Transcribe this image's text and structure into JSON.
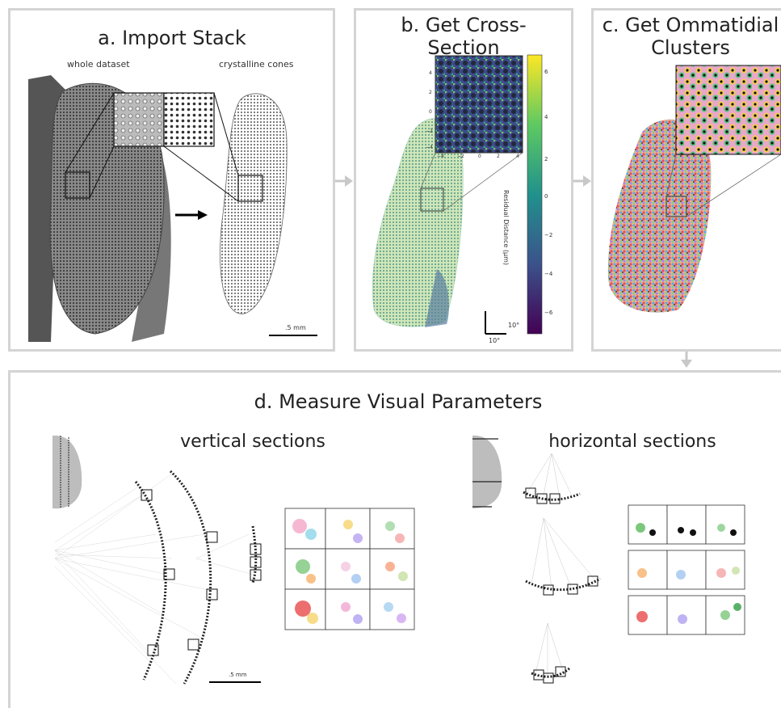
{
  "panel_a": {
    "title": "a. Import Stack",
    "label_left": "whole dataset",
    "label_right": "crystalline cones",
    "scale_bar": ".5 mm"
  },
  "panel_b": {
    "title_line1": "b. Get Cross-",
    "title_line2": "Section",
    "colorbar_label": "Residual Distance (μm)",
    "colorbar_ticks": [
      "6",
      "4",
      "2",
      "0",
      "−2",
      "−4",
      "−6"
    ],
    "inset_ticks_y": [
      "4",
      "2",
      "0",
      "−2",
      "−4"
    ],
    "inset_ticks_x": [
      "−4",
      "−2",
      "0",
      "2",
      "4"
    ],
    "angle_v": "10°",
    "angle_h": "10°"
  },
  "panel_c": {
    "title_line1": "c. Get Ommatidial",
    "title_line2": "Clusters"
  },
  "panel_d": {
    "title": "d. Measure Visual Parameters",
    "vertical_label": "vertical sections",
    "horizontal_label": "horizontal sections",
    "scale_bar": ".5 mm"
  },
  "colors": {
    "panel_border": "#d4d4d4",
    "arrow": "#c8c8c8",
    "viridis_top": "#d8e219",
    "viridis_bottom": "#440154"
  }
}
